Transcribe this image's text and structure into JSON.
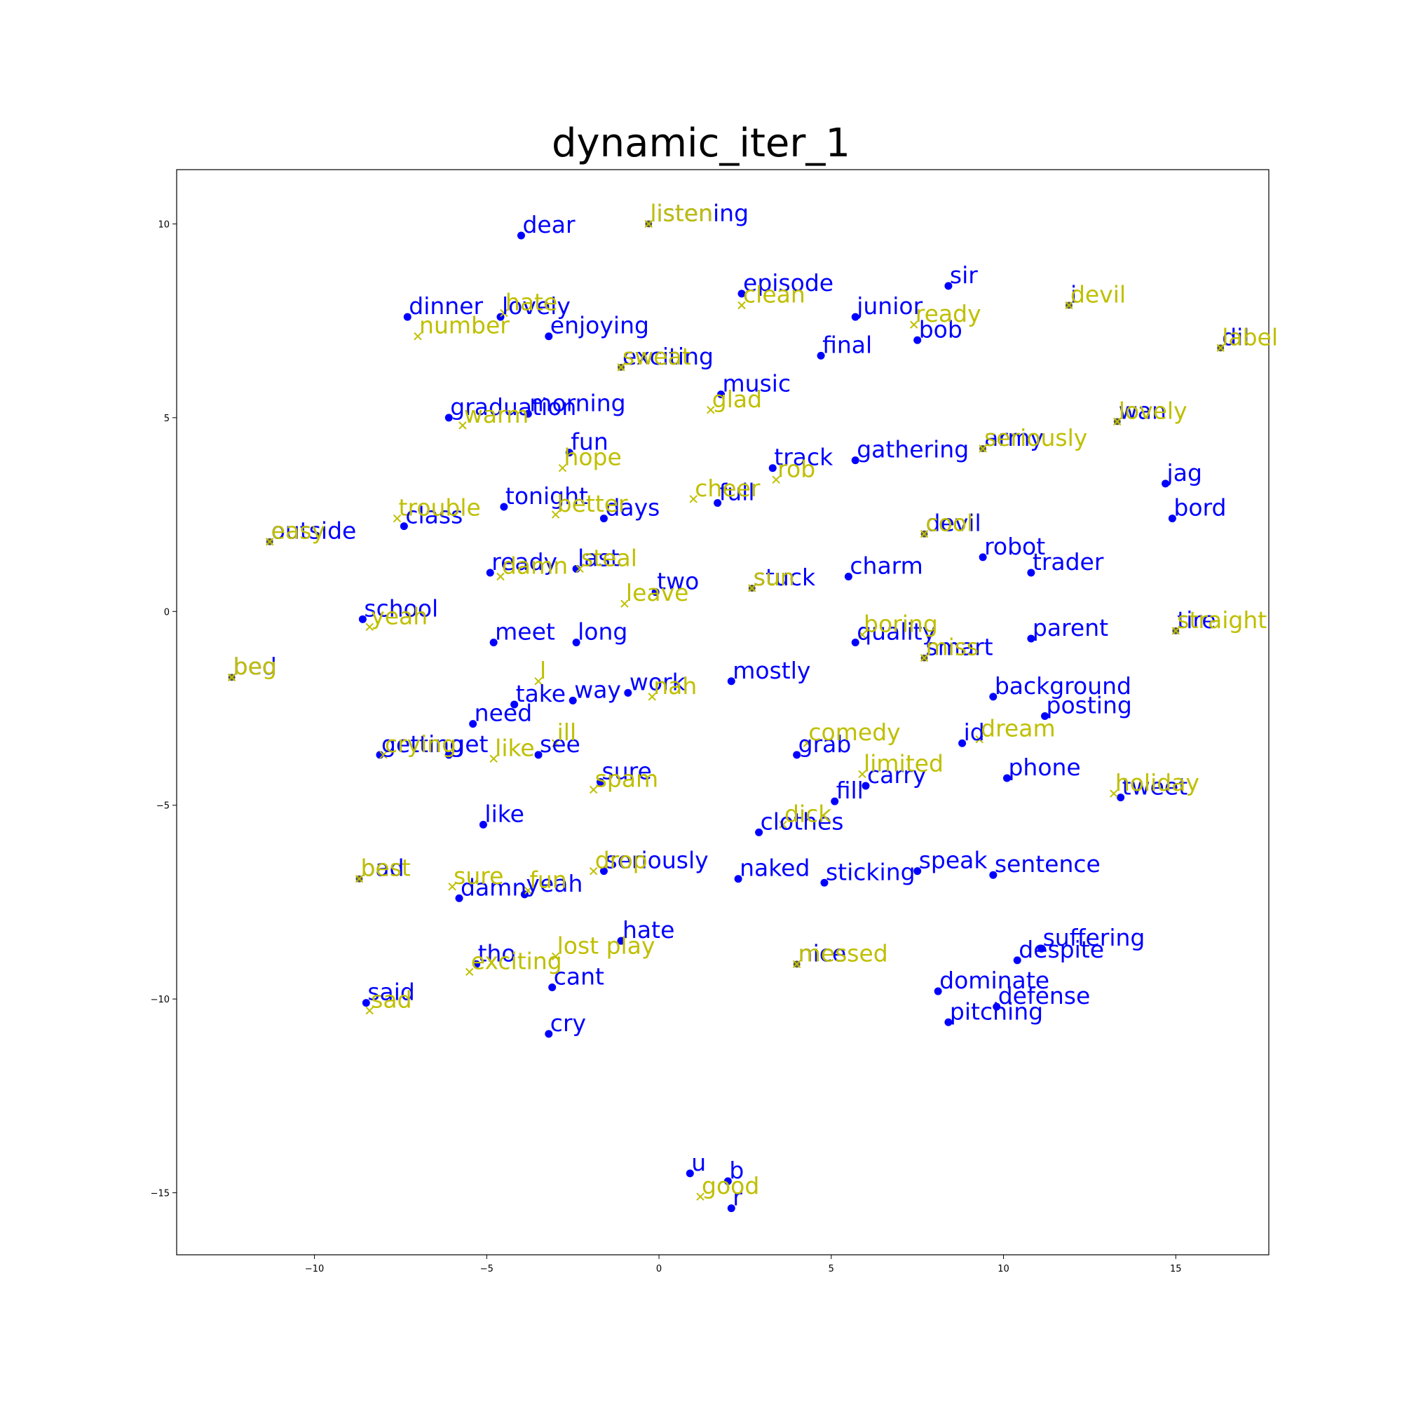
{
  "chart_data": {
    "type": "scatter",
    "title": "dynamic_iter_1",
    "xlabel": "",
    "ylabel": "",
    "xlim": [
      -14,
      17.7
    ],
    "ylim": [
      -16.6,
      11.4
    ],
    "xticks": [
      -10,
      -5,
      0,
      5,
      10,
      15
    ],
    "yticks": [
      10,
      5,
      0,
      -5,
      -10,
      -15
    ],
    "xtick_labels": [
      "−10",
      "−5",
      "0",
      "5",
      "10",
      "15"
    ],
    "ytick_labels": [
      "10",
      "5",
      "0",
      "−5",
      "−10",
      "−15"
    ],
    "grid": false,
    "legend": null,
    "colors": {
      "blue": "#0000ff",
      "yellow": "#bfbf00",
      "overlap": "#555555"
    },
    "series": [
      {
        "marker": "circle",
        "color": "#0000ff",
        "points": [
          {
            "label": "dear",
            "x": -4.0,
            "y": 9.7
          },
          {
            "label": "listening",
            "x": -0.3,
            "y": 10.0
          },
          {
            "label": "episode",
            "x": 2.4,
            "y": 8.2
          },
          {
            "label": "sir",
            "x": 8.4,
            "y": 8.4
          },
          {
            "label": "dinner",
            "x": -7.3,
            "y": 7.6
          },
          {
            "label": "lovely",
            "x": -4.6,
            "y": 7.6
          },
          {
            "label": "junior",
            "x": 5.7,
            "y": 7.6
          },
          {
            "label": "i",
            "x": 11.9,
            "y": 7.9
          },
          {
            "label": "enjoying",
            "x": -3.2,
            "y": 7.1
          },
          {
            "label": "bob",
            "x": 7.5,
            "y": 7.0
          },
          {
            "label": "dil",
            "x": 16.3,
            "y": 6.8
          },
          {
            "label": "final",
            "x": 4.7,
            "y": 6.6
          },
          {
            "label": "exciting",
            "x": -1.1,
            "y": 6.3
          },
          {
            "label": "music",
            "x": 1.8,
            "y": 5.6
          },
          {
            "label": "graduation",
            "x": -6.1,
            "y": 5.0
          },
          {
            "label": "morning",
            "x": -3.8,
            "y": 5.1
          },
          {
            "label": "wan",
            "x": 13.3,
            "y": 4.9
          },
          {
            "label": "fun",
            "x": -2.6,
            "y": 4.1
          },
          {
            "label": "track",
            "x": 3.3,
            "y": 3.7
          },
          {
            "label": "gathering",
            "x": 5.7,
            "y": 3.9
          },
          {
            "label": "army",
            "x": 9.4,
            "y": 4.2
          },
          {
            "label": "jag",
            "x": 14.7,
            "y": 3.3
          },
          {
            "label": "tonight",
            "x": -4.5,
            "y": 2.7
          },
          {
            "label": "days",
            "x": -1.6,
            "y": 2.4
          },
          {
            "label": "full",
            "x": 1.7,
            "y": 2.8
          },
          {
            "label": "class",
            "x": -7.4,
            "y": 2.2
          },
          {
            "label": "bord",
            "x": 14.9,
            "y": 2.4
          },
          {
            "label": "outside",
            "x": -11.3,
            "y": 1.8
          },
          {
            "label": "devil",
            "x": 7.7,
            "y": 2.0
          },
          {
            "label": "robot",
            "x": 9.4,
            "y": 1.4
          },
          {
            "label": "ready",
            "x": -4.9,
            "y": 1.0
          },
          {
            "label": "last",
            "x": -2.4,
            "y": 1.1
          },
          {
            "label": "trader",
            "x": 10.8,
            "y": 1.0
          },
          {
            "label": "charm",
            "x": 5.5,
            "y": 0.9
          },
          {
            "label": "two",
            "x": -0.1,
            "y": 0.5
          },
          {
            "label": "stuck",
            "x": 2.7,
            "y": 0.6
          },
          {
            "label": "school",
            "x": -8.6,
            "y": -0.2
          },
          {
            "label": "tire",
            "x": 15.0,
            "y": -0.5
          },
          {
            "label": "parent",
            "x": 10.8,
            "y": -0.7
          },
          {
            "label": "meet",
            "x": -4.8,
            "y": -0.8
          },
          {
            "label": "long",
            "x": -2.4,
            "y": -0.8
          },
          {
            "label": "quality",
            "x": 5.7,
            "y": -0.8
          },
          {
            "label": "smart",
            "x": 7.7,
            "y": -1.2
          },
          {
            "label": "bed",
            "x": -12.4,
            "y": -1.7
          },
          {
            "label": "mostly",
            "x": 2.1,
            "y": -1.8
          },
          {
            "label": "work",
            "x": -0.9,
            "y": -2.1
          },
          {
            "label": "way",
            "x": -2.5,
            "y": -2.3
          },
          {
            "label": "take",
            "x": -4.2,
            "y": -2.4
          },
          {
            "label": "background",
            "x": 9.7,
            "y": -2.2
          },
          {
            "label": "posting",
            "x": 11.2,
            "y": -2.7
          },
          {
            "label": "need",
            "x": -5.4,
            "y": -2.9
          },
          {
            "label": "id",
            "x": 8.8,
            "y": -3.4
          },
          {
            "label": "getting",
            "x": -8.1,
            "y": -3.7
          },
          {
            "label": "get",
            "x": -6.1,
            "y": -3.7
          },
          {
            "label": "see",
            "x": -3.5,
            "y": -3.7
          },
          {
            "label": "grab",
            "x": 4.0,
            "y": -3.7
          },
          {
            "label": "sure",
            "x": -1.7,
            "y": -4.4
          },
          {
            "label": "phone",
            "x": 10.1,
            "y": -4.3
          },
          {
            "label": "carry",
            "x": 6.0,
            "y": -4.5
          },
          {
            "label": "fill",
            "x": 5.1,
            "y": -4.9
          },
          {
            "label": "tweet",
            "x": 13.4,
            "y": -4.8
          },
          {
            "label": "like",
            "x": -5.1,
            "y": -5.5
          },
          {
            "label": "clothes",
            "x": 2.9,
            "y": -5.7
          },
          {
            "label": "seriously",
            "x": -1.6,
            "y": -6.7
          },
          {
            "label": "naked",
            "x": 2.3,
            "y": -6.9
          },
          {
            "label": "sticking",
            "x": 4.8,
            "y": -7.0
          },
          {
            "label": "speak",
            "x": 7.5,
            "y": -6.7
          },
          {
            "label": "sentence",
            "x": 9.7,
            "y": -6.8
          },
          {
            "label": "bad",
            "x": -8.7,
            "y": -6.9
          },
          {
            "label": "yeah",
            "x": -3.9,
            "y": -7.3
          },
          {
            "label": "damn",
            "x": -5.8,
            "y": -7.4
          },
          {
            "label": "hate",
            "x": -1.1,
            "y": -8.5
          },
          {
            "label": "suffering",
            "x": 11.1,
            "y": -8.7
          },
          {
            "label": "despite",
            "x": 10.4,
            "y": -9.0
          },
          {
            "label": "tho",
            "x": -5.3,
            "y": -9.1
          },
          {
            "label": "nice",
            "x": 4.0,
            "y": -9.1
          },
          {
            "label": "cant",
            "x": -3.1,
            "y": -9.7
          },
          {
            "label": "dominate",
            "x": 8.1,
            "y": -9.8
          },
          {
            "label": "said",
            "x": -8.5,
            "y": -10.1
          },
          {
            "label": "defense",
            "x": 9.8,
            "y": -10.2
          },
          {
            "label": "pitching",
            "x": 8.4,
            "y": -10.6
          },
          {
            "label": "cry",
            "x": -3.2,
            "y": -10.9
          },
          {
            "label": "u",
            "x": 0.9,
            "y": -14.5
          },
          {
            "label": "b",
            "x": 2.0,
            "y": -14.7
          },
          {
            "label": "r",
            "x": 2.1,
            "y": -15.4
          }
        ]
      },
      {
        "marker": "x",
        "color": "#bfbf00",
        "points": [
          {
            "label": "listen",
            "x": -0.3,
            "y": 10.0
          },
          {
            "label": "clean",
            "x": 2.4,
            "y": 7.9
          },
          {
            "label": "devil",
            "x": 11.9,
            "y": 7.9
          },
          {
            "label": "hate",
            "x": -4.5,
            "y": 7.7
          },
          {
            "label": "ready",
            "x": 7.4,
            "y": 7.4
          },
          {
            "label": "number",
            "x": -7.0,
            "y": 7.1
          },
          {
            "label": "label",
            "x": 16.3,
            "y": 6.8
          },
          {
            "label": "sweat",
            "x": -1.1,
            "y": 6.3
          },
          {
            "label": "glad",
            "x": 1.5,
            "y": 5.2
          },
          {
            "label": "warm",
            "x": -5.7,
            "y": 4.8
          },
          {
            "label": "lovely",
            "x": 13.3,
            "y": 4.9
          },
          {
            "label": "seriously",
            "x": 9.4,
            "y": 4.2
          },
          {
            "label": "hope",
            "x": -2.8,
            "y": 3.7
          },
          {
            "label": "rob",
            "x": 3.4,
            "y": 3.4
          },
          {
            "label": "cheer",
            "x": 1.0,
            "y": 2.9
          },
          {
            "label": "better",
            "x": -3.0,
            "y": 2.5
          },
          {
            "label": "trouble",
            "x": -7.6,
            "y": 2.4
          },
          {
            "label": "easy",
            "x": -11.3,
            "y": 1.8
          },
          {
            "label": "cool",
            "x": 7.7,
            "y": 2.0
          },
          {
            "label": "damn",
            "x": -4.6,
            "y": 0.9
          },
          {
            "label": "steal",
            "x": -2.3,
            "y": 1.1
          },
          {
            "label": "sun",
            "x": 2.7,
            "y": 0.6
          },
          {
            "label": "leave",
            "x": -1.0,
            "y": 0.2
          },
          {
            "label": "yeah",
            "x": -8.4,
            "y": -0.4
          },
          {
            "label": "straight",
            "x": 15.0,
            "y": -0.5
          },
          {
            "label": "boring",
            "x": 5.9,
            "y": -0.6
          },
          {
            "label": "miss",
            "x": 7.7,
            "y": -1.2
          },
          {
            "label": "beg",
            "x": -12.4,
            "y": -1.7
          },
          {
            "label": "l",
            "x": -3.5,
            "y": -1.8
          },
          {
            "label": "nah",
            "x": -0.2,
            "y": -2.2
          },
          {
            "label": "ill",
            "x": -3.0,
            "y": -3.4
          },
          {
            "label": "like",
            "x": -4.8,
            "y": -3.8
          },
          {
            "label": "crying",
            "x": -8.0,
            "y": -3.7
          },
          {
            "label": "comedy",
            "x": 4.3,
            "y": -3.4
          },
          {
            "label": "dream",
            "x": 9.3,
            "y": -3.3
          },
          {
            "label": "limited",
            "x": 5.9,
            "y": -4.2
          },
          {
            "label": "spam",
            "x": -1.9,
            "y": -4.6
          },
          {
            "label": "holiday",
            "x": 13.2,
            "y": -4.7
          },
          {
            "label": "dick",
            "x": 3.6,
            "y": -5.5
          },
          {
            "label": "drop",
            "x": -1.9,
            "y": -6.7
          },
          {
            "label": "best",
            "x": -8.7,
            "y": -6.9
          },
          {
            "label": "sure",
            "x": -6.0,
            "y": -7.1
          },
          {
            "label": "fun",
            "x": -3.8,
            "y": -7.2
          },
          {
            "label": "lost play",
            "x": -3.0,
            "y": -8.9
          },
          {
            "label": "exciting",
            "x": -5.5,
            "y": -9.3
          },
          {
            "label": "messed",
            "x": 4.0,
            "y": -9.1
          },
          {
            "label": "sad",
            "x": -8.4,
            "y": -10.3
          },
          {
            "label": "good",
            "x": 1.2,
            "y": -15.1
          }
        ]
      }
    ]
  }
}
